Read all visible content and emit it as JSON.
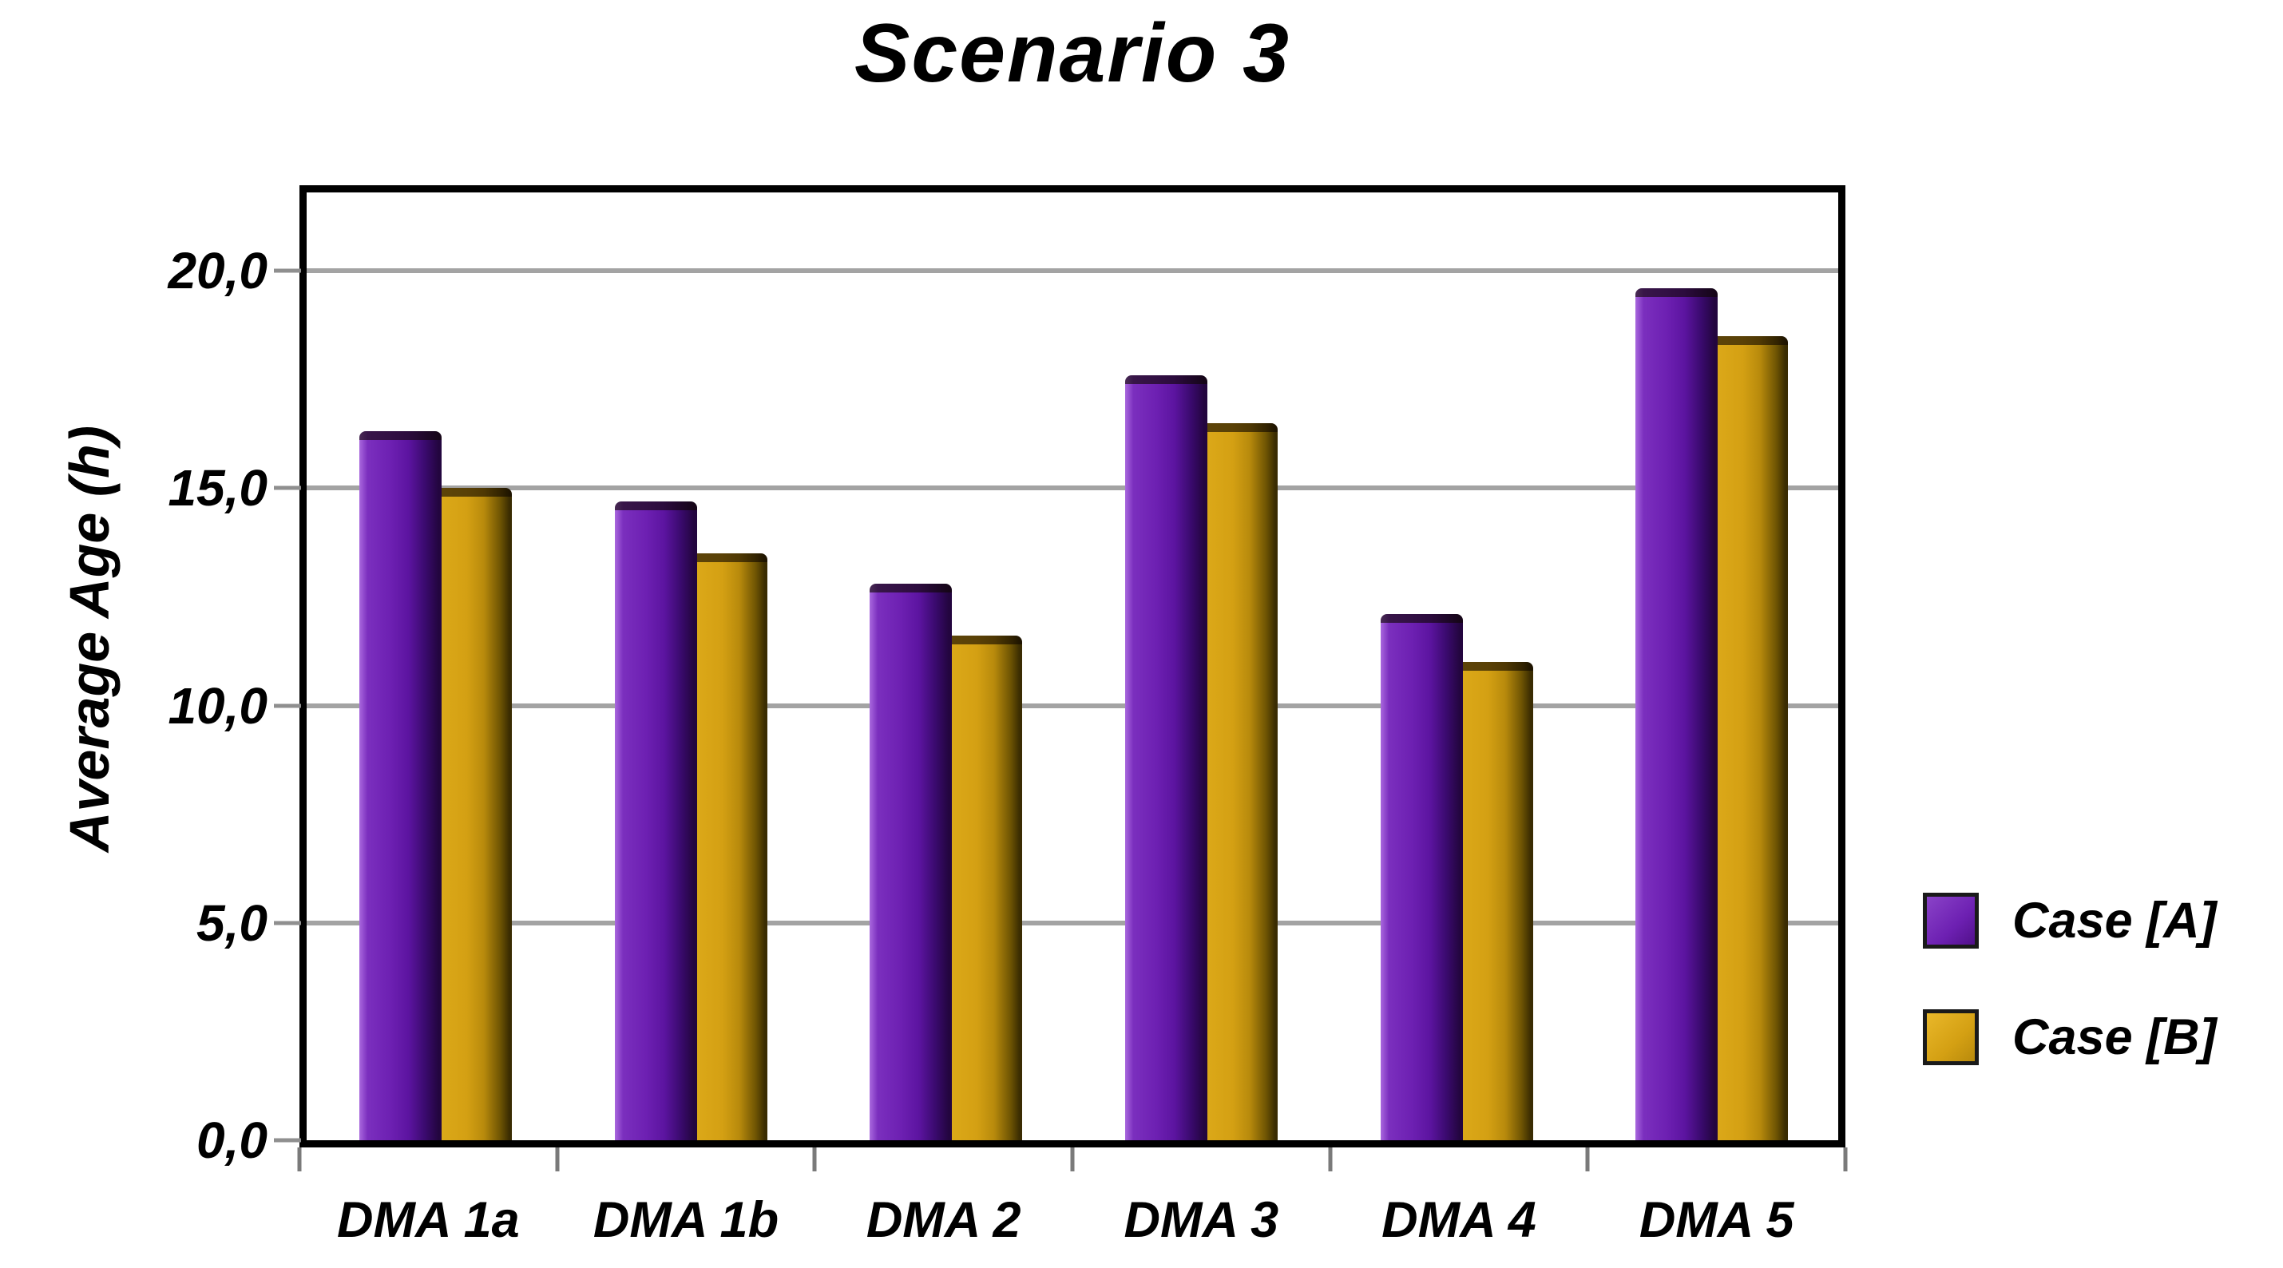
{
  "page": {
    "background": "#ffffff"
  },
  "chart_data": {
    "type": "bar",
    "title": "Scenario 3",
    "xlabel": "",
    "ylabel": "Average Age (h)",
    "categories": [
      "DMA 1a",
      "DMA 1b",
      "DMA 2",
      "DMA 3",
      "DMA 4",
      "DMA 5"
    ],
    "series": [
      {
        "name": "Case [A]",
        "color": "#6d20b2",
        "values": [
          16.3,
          14.7,
          12.8,
          17.6,
          12.1,
          19.6
        ]
      },
      {
        "name": "Case [B]",
        "color": "#d4a013",
        "values": [
          15.0,
          13.5,
          11.6,
          16.5,
          11.0,
          18.5
        ]
      }
    ],
    "yticks": [
      0,
      5,
      10,
      15,
      20
    ],
    "ytick_labels": [
      "0,0",
      "5,0",
      "10,0",
      "15,0",
      "20,0"
    ],
    "ylim": [
      0,
      21.8
    ],
    "grid": true,
    "legend_position": "right",
    "decimal_separator": ",",
    "gridline_color": "#a3a3a3",
    "frame_color": "#000000"
  }
}
